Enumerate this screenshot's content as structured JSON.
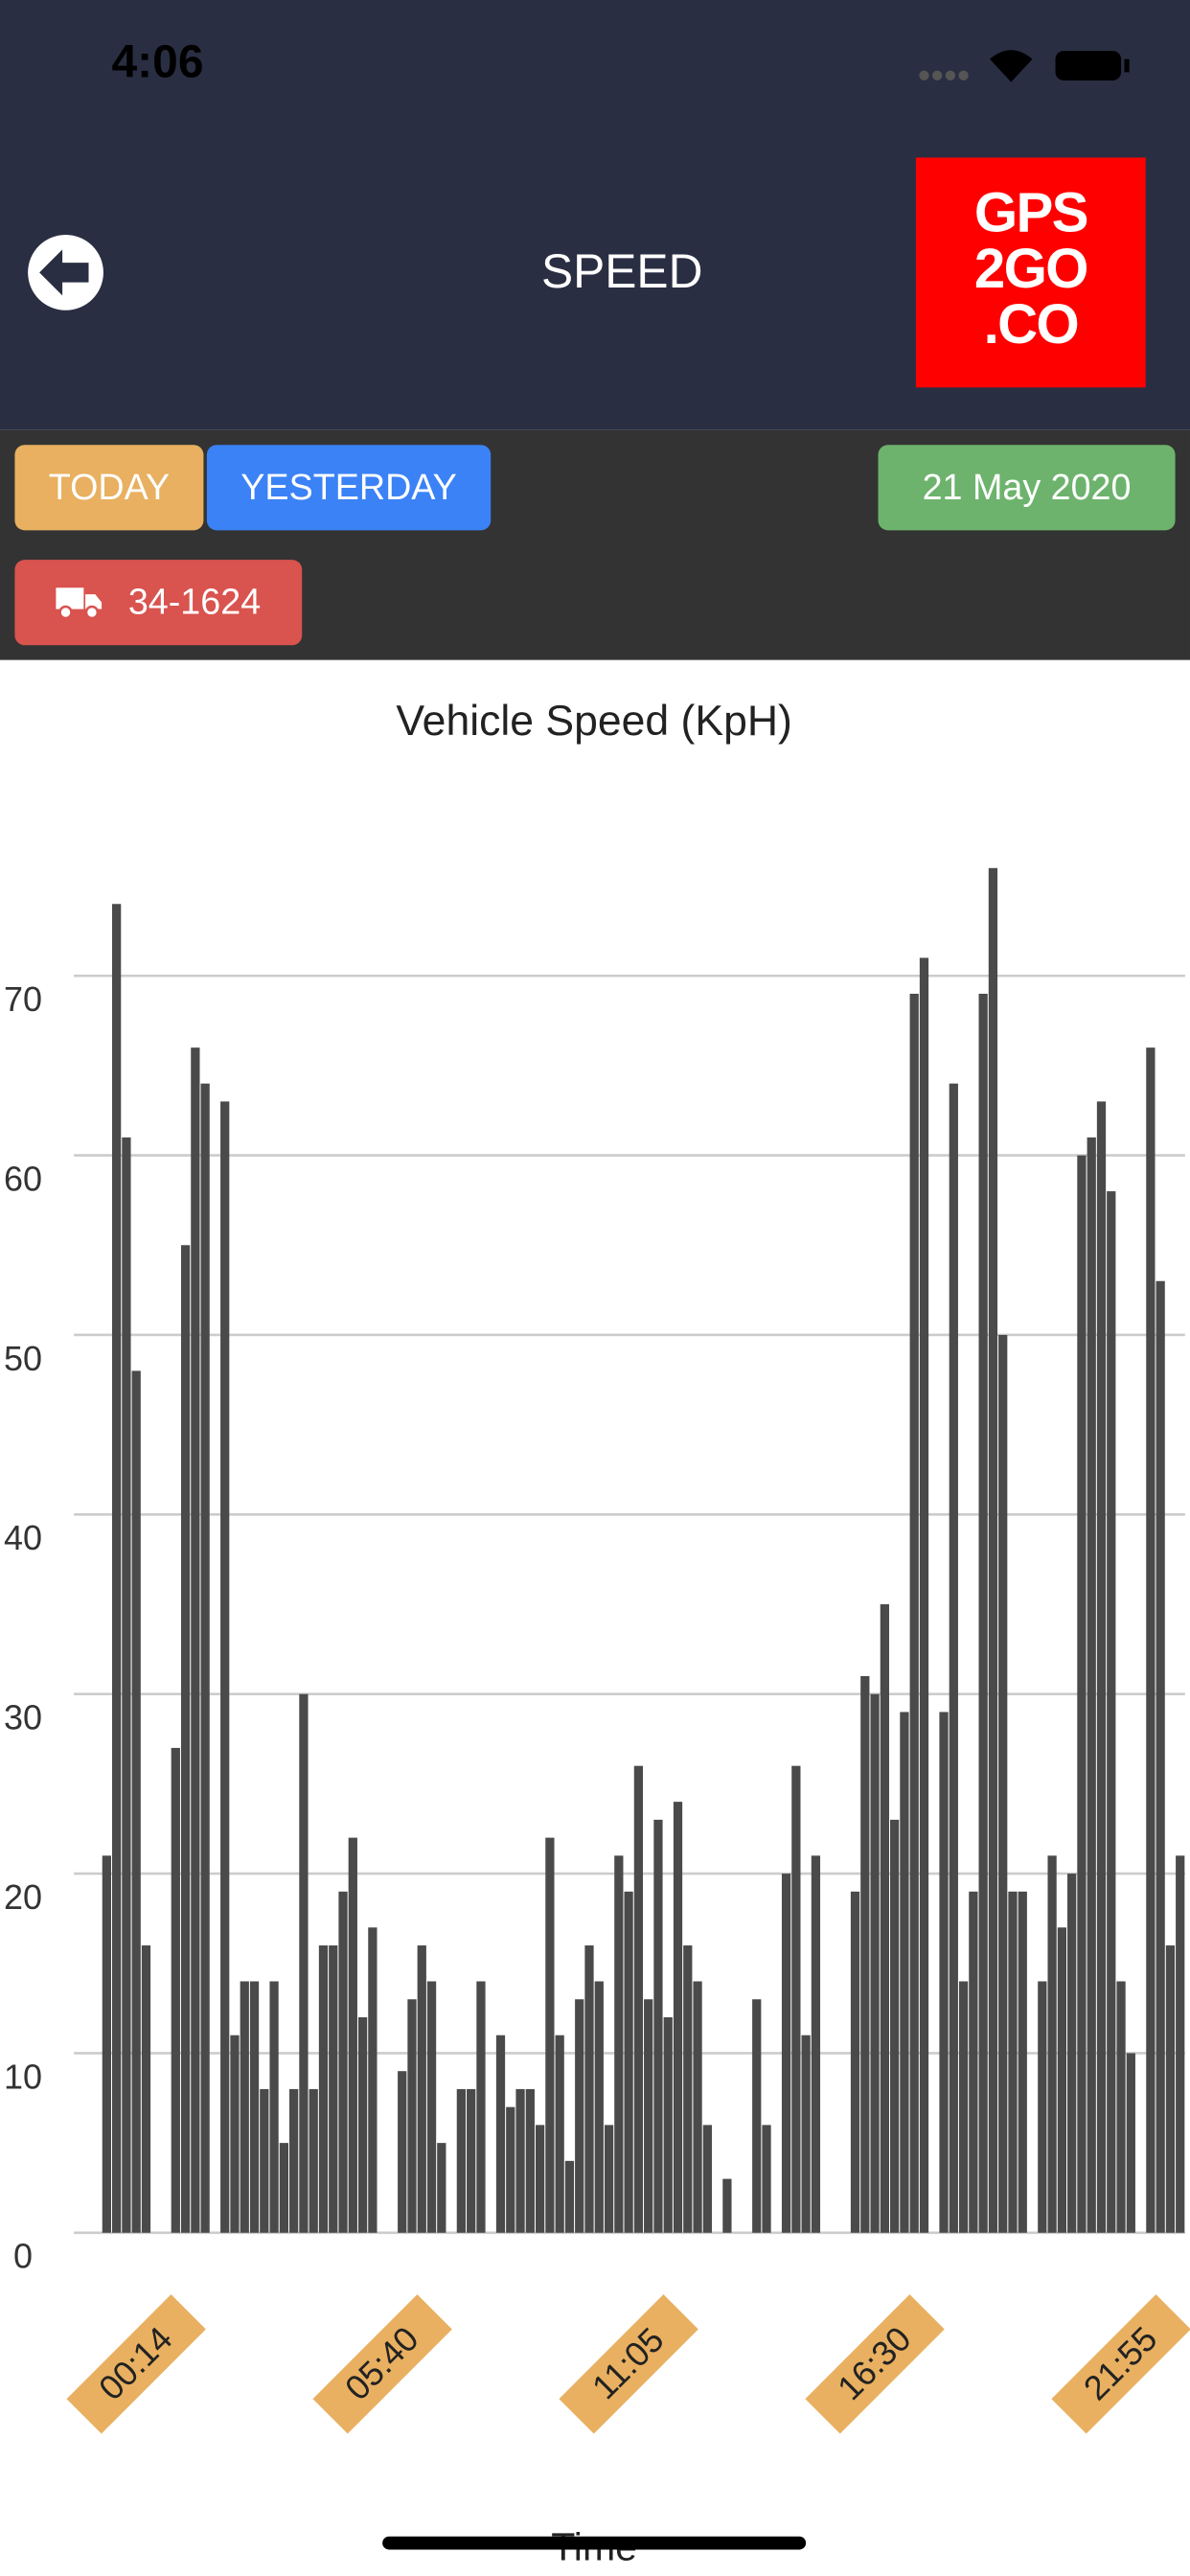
{
  "status_bar": {
    "time": "4:06"
  },
  "header": {
    "title": "SPEED",
    "logo": [
      "GPS",
      "2GO",
      ".CO"
    ]
  },
  "toolbar": {
    "today": "TODAY",
    "yesterday": "YESTERDAY",
    "date": "21 May 2020",
    "vehicle": "34-1624"
  },
  "chart_data": {
    "type": "bar",
    "title": "Vehicle Speed (KpH)",
    "x_label": "Time",
    "categories": [
      null,
      null,
      null,
      "00:14",
      null,
      null,
      null,
      null,
      null,
      null,
      null,
      null,
      null,
      null,
      null,
      null,
      null,
      null,
      null,
      null,
      null,
      null,
      null,
      null,
      null,
      null,
      null,
      null,
      "05:40",
      null,
      null,
      null,
      null,
      null,
      null,
      null,
      null,
      null,
      null,
      null,
      null,
      null,
      null,
      null,
      null,
      null,
      null,
      null,
      null,
      null,
      null,
      null,
      null,
      "11:05",
      null,
      null,
      null,
      null,
      null,
      null,
      null,
      null,
      null,
      null,
      null,
      null,
      null,
      null,
      null,
      null,
      null,
      null,
      null,
      null,
      null,
      null,
      null,
      null,
      "16:30",
      null,
      null,
      null,
      null,
      null,
      null,
      null,
      null,
      null,
      null,
      null,
      null,
      null,
      null,
      null,
      null,
      null,
      null,
      null,
      null,
      null,
      null,
      null,
      null,
      "21:55",
      null,
      null,
      null,
      null,
      null,
      null
    ],
    "values": [
      21,
      74,
      61,
      48,
      16,
      0,
      0,
      27,
      55,
      66,
      64,
      0,
      63,
      11,
      14,
      14,
      8,
      14,
      5,
      8,
      30,
      8,
      16,
      16,
      19,
      22,
      12,
      17,
      0,
      0,
      9,
      13,
      16,
      14,
      5,
      0,
      8,
      8,
      14,
      0,
      11,
      7,
      8,
      8,
      6,
      22,
      11,
      4,
      13,
      16,
      14,
      6,
      21,
      19,
      26,
      13,
      23,
      12,
      24,
      16,
      14,
      6,
      0,
      3,
      0,
      0,
      13,
      6,
      0,
      20,
      26,
      11,
      21,
      0,
      0,
      0,
      19,
      31,
      30,
      35,
      23,
      29,
      69,
      71,
      0,
      29,
      64,
      14,
      19,
      69,
      76,
      50,
      19,
      19,
      0,
      14,
      21,
      17,
      20,
      60,
      61,
      63,
      58,
      14,
      10,
      0,
      66,
      53,
      16,
      21
    ],
    "color": "#4a4a4a",
    "ylim": [
      0,
      80
    ],
    "yticks": [
      0,
      10,
      20,
      30,
      40,
      50,
      60,
      70
    ],
    "grid": true
  }
}
